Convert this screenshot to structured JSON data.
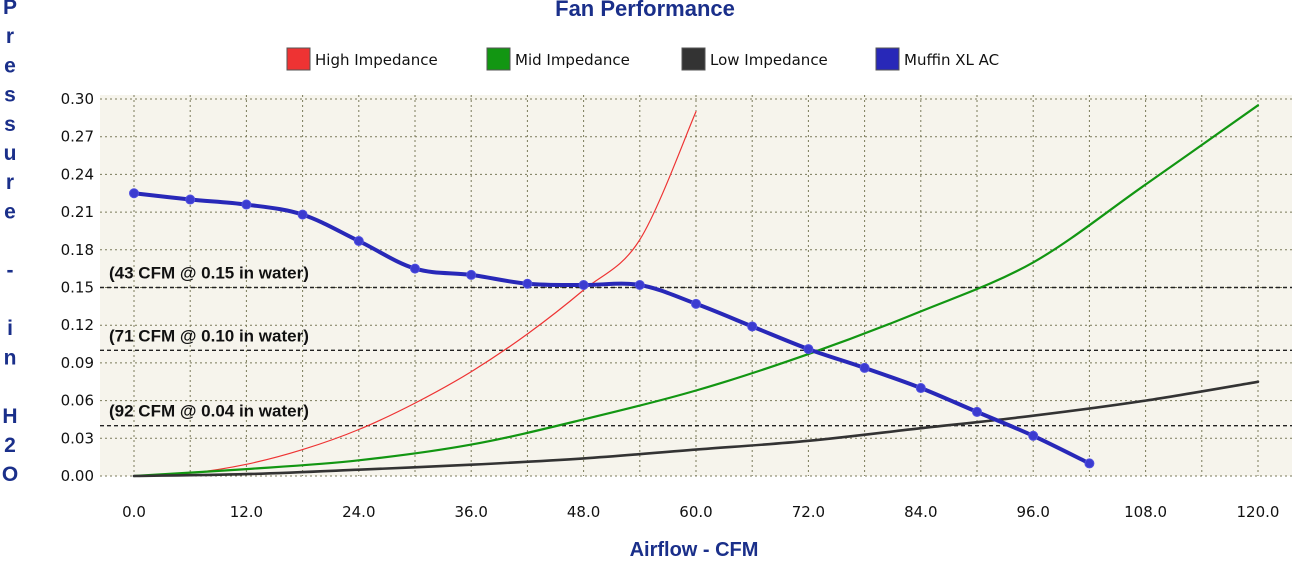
{
  "chart_data": {
    "type": "line",
    "title": "Fan Performance",
    "xlabel": "Airflow - CFM",
    "ylabel": "Pressure - in H2O",
    "xlim": [
      0,
      120
    ],
    "ylim": [
      0,
      0.3
    ],
    "x_ticks": [
      "0.0",
      "12.0",
      "24.0",
      "36.0",
      "48.0",
      "60.0",
      "72.0",
      "84.0",
      "96.0",
      "108.0",
      "120.0"
    ],
    "y_ticks": [
      "0.00",
      "0.03",
      "0.06",
      "0.09",
      "0.12",
      "0.15",
      "0.18",
      "0.21",
      "0.24",
      "0.27",
      "0.30"
    ],
    "grid": true,
    "legend_position": "top",
    "series": [
      {
        "name": "High Impedance",
        "color": "#ee3333",
        "stroke": 1.2,
        "markers": false,
        "x": [
          0,
          6,
          12,
          18,
          24,
          30,
          36,
          42,
          48,
          54,
          60
        ],
        "y": [
          0,
          0.0023,
          0.0093,
          0.021,
          0.037,
          0.058,
          0.083,
          0.113,
          0.148,
          0.188,
          0.29
        ]
      },
      {
        "name": "Mid Impedance",
        "color": "#129612",
        "stroke": 2.2,
        "markers": false,
        "x": [
          0,
          12,
          24,
          36,
          48,
          60,
          72,
          84,
          96,
          108,
          120
        ],
        "y": [
          0,
          0.0055,
          0.0125,
          0.025,
          0.045,
          0.068,
          0.097,
          0.131,
          0.17,
          0.232,
          0.295
        ]
      },
      {
        "name": "Low Impedance",
        "color": "#333333",
        "stroke": 2.6,
        "markers": false,
        "x": [
          0,
          12,
          24,
          36,
          48,
          60,
          72,
          84,
          96,
          108,
          120
        ],
        "y": [
          0,
          0.0015,
          0.005,
          0.009,
          0.014,
          0.021,
          0.028,
          0.038,
          0.048,
          0.06,
          0.075
        ]
      },
      {
        "name": "Muffin XL AC",
        "color": "#2828b8",
        "stroke": 4,
        "markers": true,
        "x": [
          0,
          6,
          12,
          18,
          24,
          30,
          36,
          42,
          48,
          54,
          60,
          66,
          72,
          78,
          84,
          90,
          96,
          102
        ],
        "y": [
          0.225,
          0.22,
          0.216,
          0.208,
          0.187,
          0.165,
          0.16,
          0.153,
          0.152,
          0.152,
          0.137,
          0.119,
          0.101,
          0.086,
          0.07,
          0.051,
          0.032,
          0.01
        ]
      }
    ],
    "reference_lines": [
      {
        "y": 0.15,
        "label": "(43 CFM @ 0.15 in water)"
      },
      {
        "y": 0.1,
        "label": "(71 CFM @ 0.10 in water)"
      },
      {
        "y": 0.04,
        "label": "(92 CFM @ 0.04 in water)"
      }
    ]
  },
  "ylabel_letters": [
    "P",
    "r",
    "e",
    "s",
    "s",
    "u",
    "r",
    "e",
    "",
    "-",
    "",
    "i",
    "n",
    "",
    "H",
    "2",
    "O"
  ]
}
